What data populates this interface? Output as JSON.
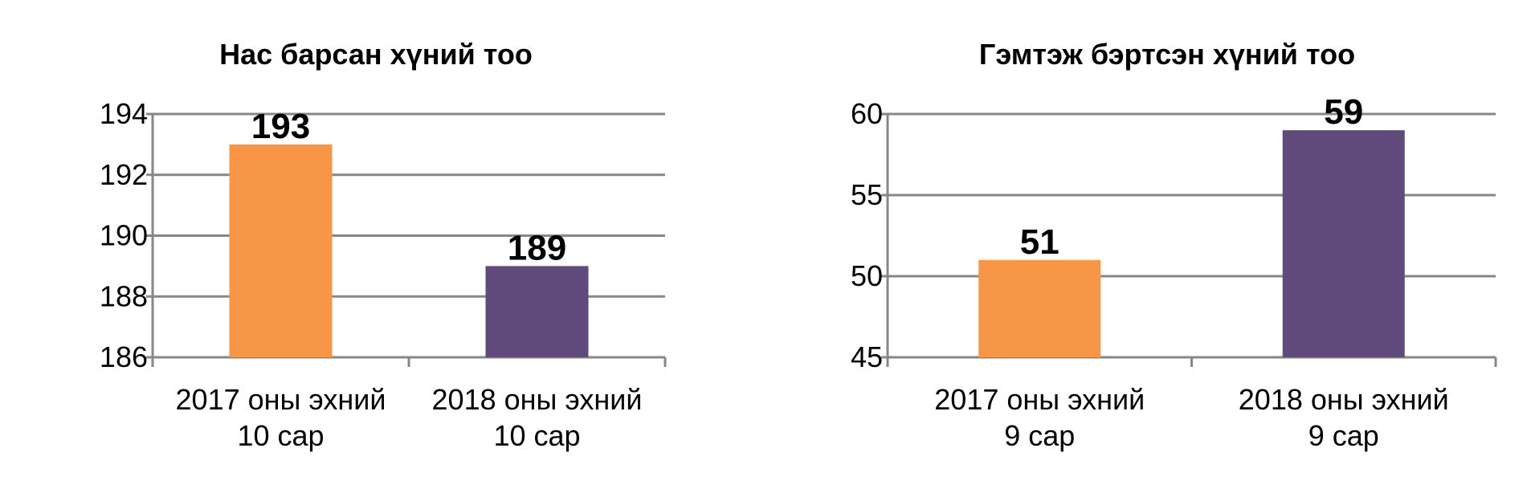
{
  "chart_data": [
    {
      "type": "bar",
      "title": "Нас барсан хүний тоо",
      "categories": [
        "2017 оны эхний 10 сар",
        "2018 оны эхний 10 сар"
      ],
      "category_lines": [
        [
          "2017 оны эхний",
          "10 сар"
        ],
        [
          "2018 оны эхний",
          "10 сар"
        ]
      ],
      "values": [
        193,
        189
      ],
      "bar_colors": [
        "#F79646",
        "#604A7B"
      ],
      "ylim": [
        186,
        194
      ],
      "yticks": [
        186,
        188,
        190,
        192,
        194
      ],
      "grid": true,
      "legend": "none"
    },
    {
      "type": "bar",
      "title": "Гэмтэж бэртсэн хүний тоо",
      "categories": [
        "2017 оны эхний 9 сар",
        "2018 оны эхний 9 сар"
      ],
      "category_lines": [
        [
          "2017 оны эхний",
          "9 сар"
        ],
        [
          "2018 оны эхний",
          "9 сар"
        ]
      ],
      "values": [
        51,
        59
      ],
      "bar_colors": [
        "#F79646",
        "#604A7B"
      ],
      "ylim": [
        45,
        60
      ],
      "yticks": [
        45,
        50,
        55,
        60
      ],
      "grid": true,
      "legend": "none"
    }
  ]
}
